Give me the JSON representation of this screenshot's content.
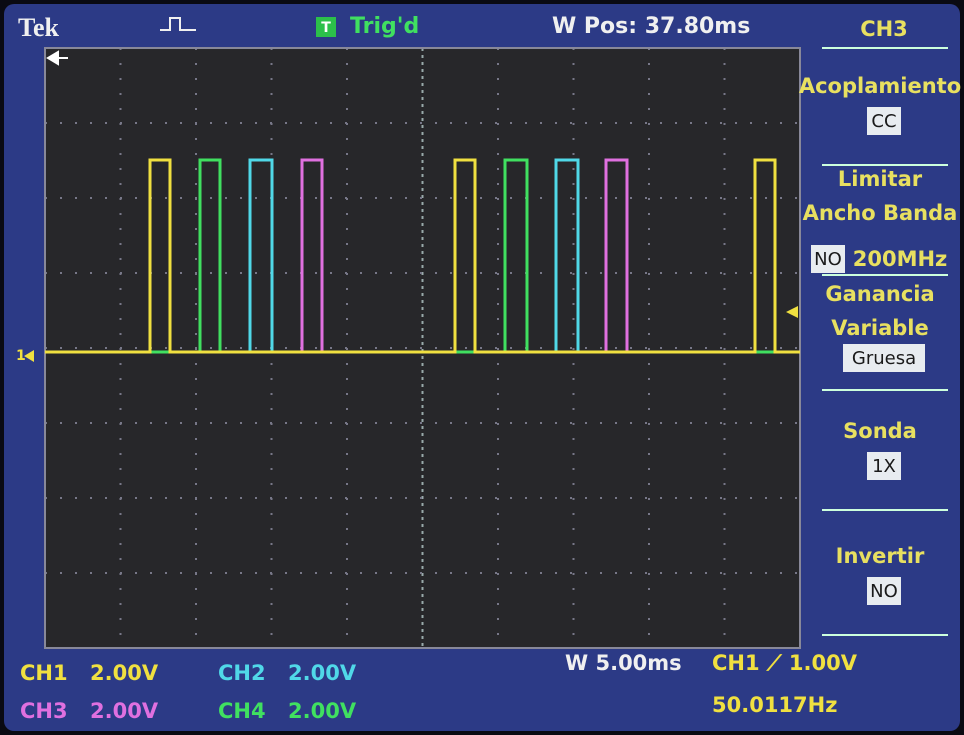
{
  "header": {
    "brand": "Tek",
    "trigger_icon": "T",
    "trigger_status": "Trig'd",
    "position": "W Pos: 37.80ms"
  },
  "ground_marker": "1",
  "menu": {
    "title": "CH3",
    "items": [
      {
        "label": [
          "Acoplamiento"
        ],
        "value": "CC"
      },
      {
        "label": [
          "Limitar",
          "Ancho Banda"
        ],
        "value": "NO",
        "extra": "200MHz"
      },
      {
        "label": [
          "Ganancia",
          "Variable"
        ],
        "value": "Gruesa"
      },
      {
        "label": [
          "Sonda"
        ],
        "value": "1X"
      },
      {
        "label": [
          "Invertir"
        ],
        "value": "NO"
      }
    ]
  },
  "footer": {
    "channels": [
      {
        "name": "CH1",
        "scale": "2.00V"
      },
      {
        "name": "CH2",
        "scale": "2.00V"
      },
      {
        "name": "CH3",
        "scale": "2.00V"
      },
      {
        "name": "CH4",
        "scale": "2.00V"
      }
    ],
    "timebase": "W 5.00ms",
    "trigger": "CH1 ⟋ 1.00V",
    "frequency": "50.0117Hz"
  }
}
